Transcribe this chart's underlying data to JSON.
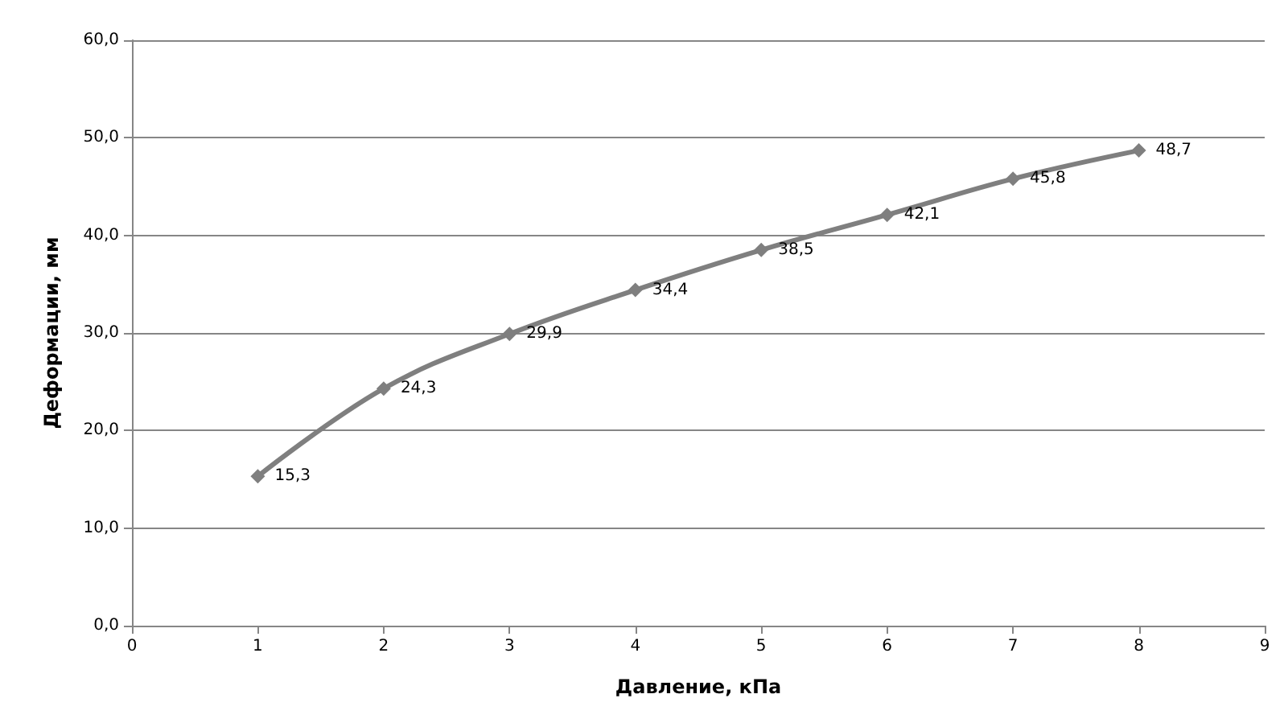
{
  "chart_data": {
    "type": "line",
    "xlabel": "Давление, кПа",
    "ylabel": "Деформации, мм",
    "x": [
      1,
      2,
      3,
      4,
      5,
      6,
      7,
      8
    ],
    "series": [
      {
        "color": "#7f7f7f",
        "values": [
          15.3,
          24.3,
          29.9,
          34.4,
          38.5,
          42.1,
          45.8,
          48.7
        ],
        "value_labels": [
          "15,3",
          "24,3",
          "29,9",
          "34,4",
          "38,5",
          "42,1",
          "45,8",
          "48,7"
        ]
      }
    ],
    "xlim": [
      0,
      9
    ],
    "xticks": [
      0,
      1,
      2,
      3,
      4,
      5,
      6,
      7,
      8,
      9
    ],
    "ylim": [
      0,
      60
    ],
    "yticks": [
      {
        "value": 0,
        "label": "0,0"
      },
      {
        "value": 10,
        "label": "10,0"
      },
      {
        "value": 20,
        "label": "20,0"
      },
      {
        "value": 30,
        "label": "30,0"
      },
      {
        "value": 40,
        "label": "40,0"
      },
      {
        "value": 50,
        "label": "50,0"
      },
      {
        "value": 60,
        "label": "60,0"
      }
    ],
    "grid": "y",
    "marker": "diamond",
    "line_style": "solid"
  }
}
